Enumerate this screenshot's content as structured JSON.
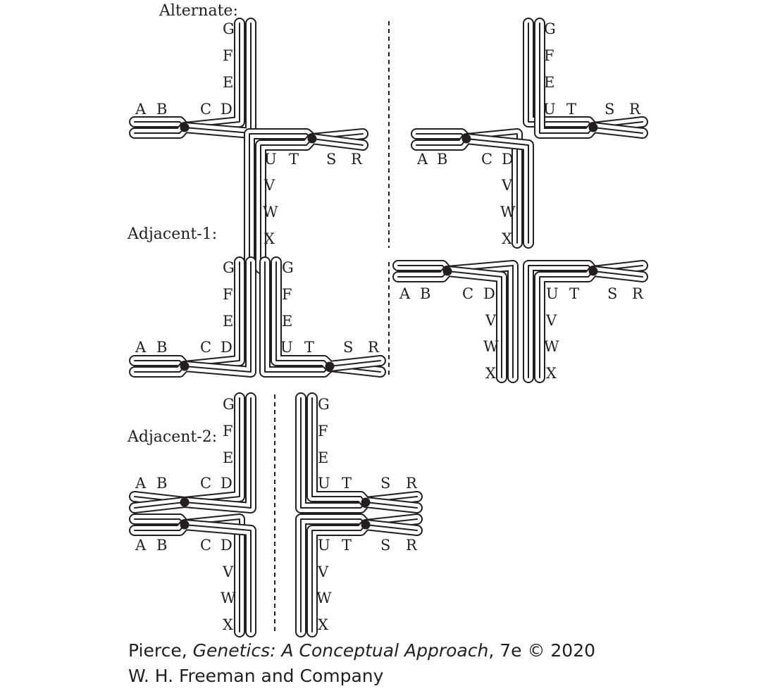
{
  "titles": {
    "alternate": "Alternate:",
    "adjacent1": "Adjacent-1:",
    "adjacent2": "Adjacent-2:"
  },
  "genes": {
    "A": "A",
    "B": "B",
    "C": "C",
    "D": "D",
    "E": "E",
    "F": "F",
    "G": "G",
    "R": "R",
    "S": "S",
    "T": "T",
    "U": "U",
    "V": "V",
    "W": "W",
    "X": "X"
  },
  "credit": {
    "author": "Pierce, ",
    "book": "Genetics: A Conceptual Approach",
    "edition": ", 7e © 2020",
    "publisher": "W. H. Freeman and Company"
  }
}
